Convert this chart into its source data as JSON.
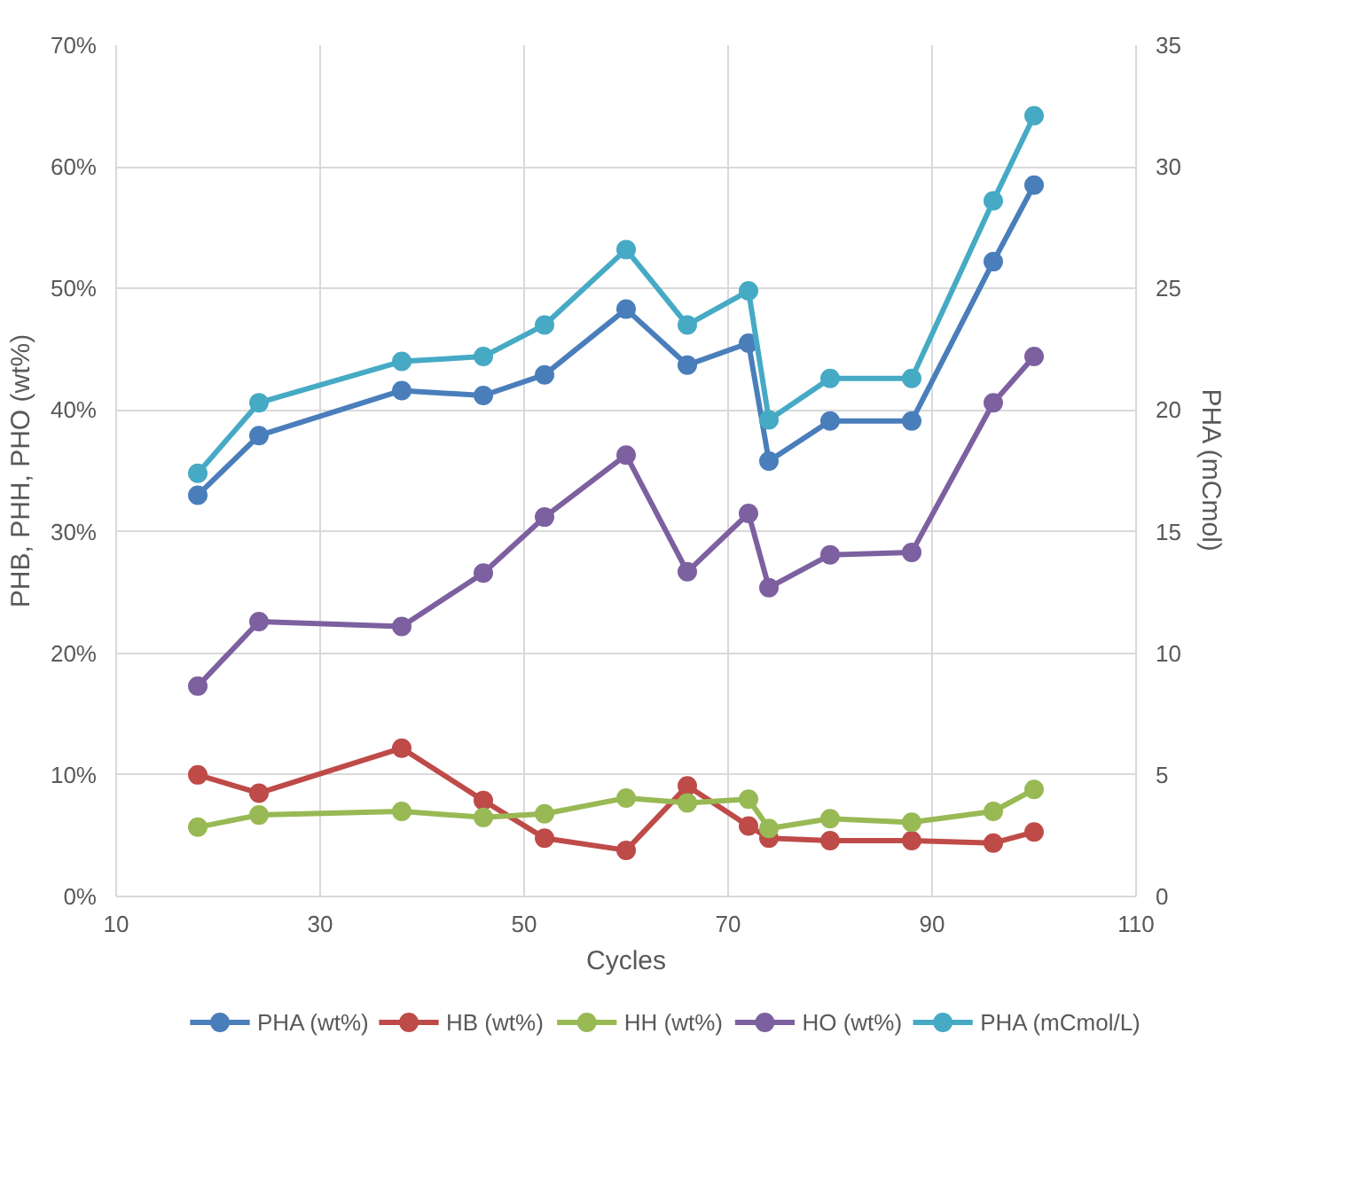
{
  "chart_data": {
    "type": "line",
    "xlabel": "Cycles",
    "ylabel": "PHB, PHH, PHO (wt%)",
    "y2label": "PHA (mCmol)",
    "x": [
      18,
      24,
      38,
      46,
      52,
      60,
      66,
      72,
      74,
      80,
      88,
      96,
      100
    ],
    "series": [
      {
        "name": "PHA (wt%)",
        "color": "#4a7ebb",
        "values": [
          33.0,
          37.9,
          41.6,
          41.2,
          42.9,
          48.3,
          43.7,
          45.5,
          35.8,
          39.1,
          39.1,
          52.2,
          58.5
        ]
      },
      {
        "name": "HB (wt%)",
        "color": "#be4b48",
        "values": [
          10.0,
          8.5,
          12.2,
          7.9,
          4.8,
          3.8,
          9.1,
          5.8,
          4.8,
          4.6,
          4.6,
          4.4,
          5.3
        ]
      },
      {
        "name": "HH (wt%)",
        "color": "#98b954",
        "values": [
          5.7,
          6.7,
          7.0,
          6.5,
          6.8,
          8.1,
          7.7,
          8.0,
          5.6,
          6.4,
          6.1,
          7.0,
          8.8
        ]
      },
      {
        "name": "HO (wt%)",
        "color": "#7d60a0",
        "values": [
          17.3,
          22.6,
          22.2,
          26.6,
          31.2,
          36.3,
          26.7,
          31.5,
          25.4,
          28.1,
          28.3,
          40.6,
          44.4
        ]
      },
      {
        "name": "PHA (mCmol/L)",
        "color": "#46aac5",
        "axis": "y2",
        "values": [
          17.4,
          20.3,
          22.0,
          22.2,
          23.5,
          26.6,
          23.5,
          24.9,
          19.6,
          21.3,
          21.3,
          28.6,
          32.1
        ]
      }
    ],
    "xlim": [
      10,
      110
    ],
    "xticks": [
      10,
      30,
      50,
      70,
      90,
      110
    ],
    "ylim": [
      0,
      70
    ],
    "yticks": [
      {
        "value": 0,
        "label": "0%"
      },
      {
        "value": 10,
        "label": "10%"
      },
      {
        "value": 20,
        "label": "20%"
      },
      {
        "value": 30,
        "label": "30%"
      },
      {
        "value": 40,
        "label": "40%"
      },
      {
        "value": 50,
        "label": "50%"
      },
      {
        "value": 60,
        "label": "60%"
      },
      {
        "value": 70,
        "label": "70%"
      }
    ],
    "y2lim": [
      0,
      35
    ],
    "y2ticks": [
      0,
      5,
      10,
      15,
      20,
      25,
      30,
      35
    ],
    "grid": true,
    "legend": "bottom",
    "marker": "circle",
    "line_style": "solid"
  }
}
